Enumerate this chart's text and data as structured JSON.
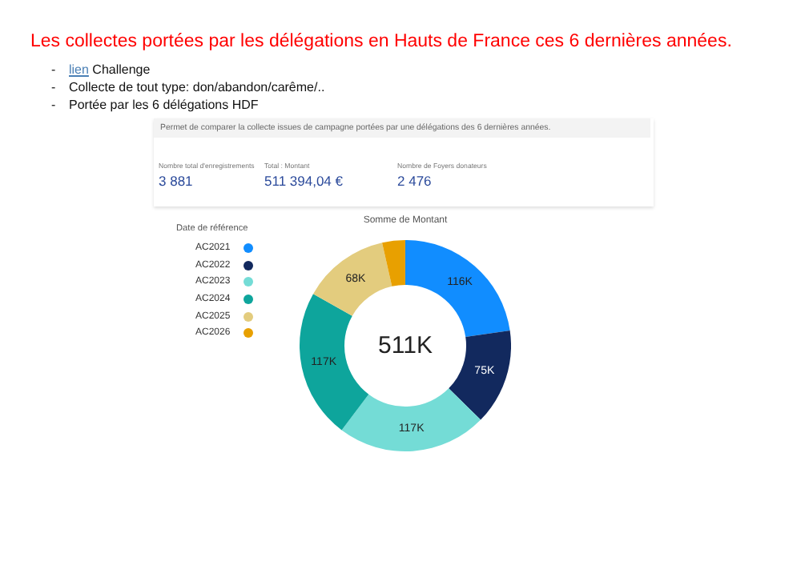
{
  "chart_data": {
    "type": "donut",
    "title": "Les collectes portées par les délégations en Hauts de France ces 6 dernières années.",
    "subtitle": "Somme de Montant",
    "legend_title": "Date de référence",
    "legend": "top left",
    "categories": [
      "AC2021",
      "AC2022",
      "AC2023",
      "AC2024",
      "AC2025",
      "AC2026"
    ],
    "values": [
      116,
      75,
      117,
      117,
      68,
      18
    ],
    "value_labels": [
      "116K",
      "75K",
      "117K",
      "117K",
      "68K",
      null
    ],
    "colors": [
      "#118dff",
      "#12295e",
      "#74dcd6",
      "#0ea59c",
      "#e3cc7e",
      "#e8a000"
    ],
    "annotations": [
      "- lien Challenge",
      "- Collecte de tout type: don/abandon/carême/..",
      "- Portée par les 6 délégations HDF",
      "Permet de comparer la collecte issues de campagne portées par une délégations des 6 dernières années.",
      "Nombre total d'enregistrements",
      "3 881",
      "Total : Montant",
      "511 394,04 €",
      "Nombre de Foyers donateurs",
      "2 476",
      "511K"
    ]
  }
}
